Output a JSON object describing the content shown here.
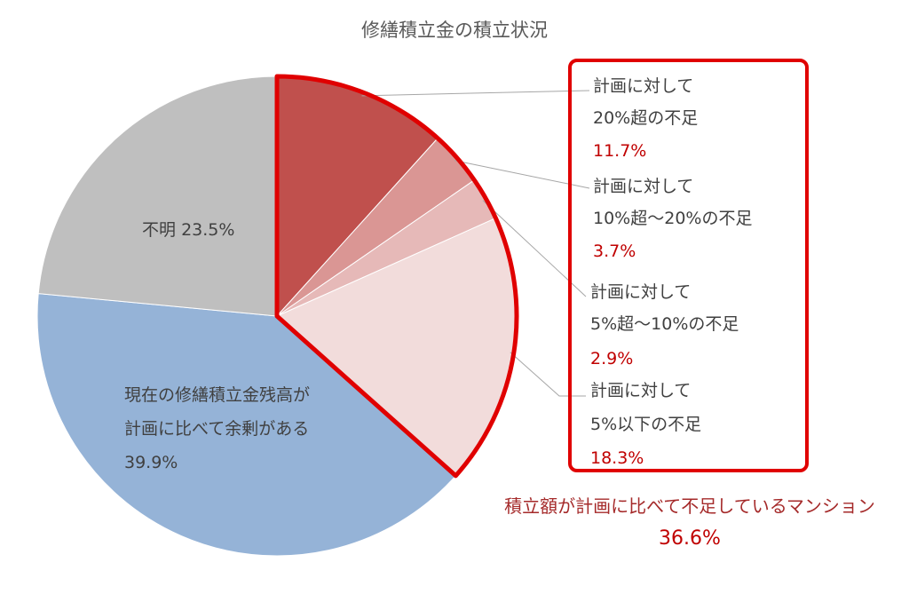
{
  "chart_data": {
    "type": "pie",
    "title": "修繕積立金の積立状況",
    "slices": [
      {
        "label_lines": [
          "計画に対して",
          "20%超の不足"
        ],
        "value": 11.7,
        "value_text": "11.7%",
        "color": "#c0504d"
      },
      {
        "label_lines": [
          "計画に対して",
          "10%超～20%の不足"
        ],
        "value": 3.7,
        "value_text": "3.7%",
        "color": "#da9694"
      },
      {
        "label_lines": [
          "計画に対して",
          "5%超～10%の不足"
        ],
        "value": 2.9,
        "value_text": "2.9%",
        "color": "#e6b9b8"
      },
      {
        "label_lines": [
          "計画に対して",
          "5%以下の不足"
        ],
        "value": 18.3,
        "value_text": "18.3%",
        "color": "#f2dcdb"
      },
      {
        "label_lines": [
          "現在の修繕積立金残高が",
          "計画に比べて余剰がある"
        ],
        "value": 39.9,
        "value_text": "39.9%",
        "color": "#95b3d7"
      },
      {
        "label_lines": [
          "不明"
        ],
        "value": 23.5,
        "value_text": "23.5%",
        "color": "#bfbfbf"
      }
    ],
    "highlight": {
      "text": "積立額が計画に比べて不足しているマンション",
      "value_text": "36.6%",
      "color": "#e00000"
    }
  }
}
